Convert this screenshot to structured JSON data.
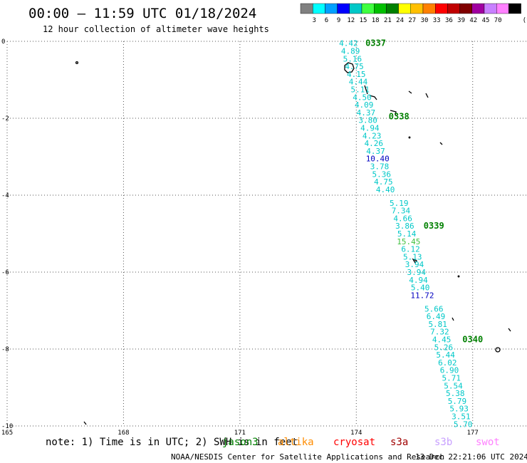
{
  "header": {
    "title": "00:00 – 11:59 UTC 01/18/2024",
    "subtitle": "12 hour collection of altimeter wave heights"
  },
  "legend": {
    "colors": [
      "#808080",
      "#00ffff",
      "#00a0ff",
      "#0000ff",
      "#00c8c8",
      "#40ff40",
      "#00c000",
      "#008000",
      "#ffff00",
      "#ffc000",
      "#ff8000",
      "#ff0000",
      "#c00000",
      "#800000",
      "#a000a0",
      "#c880ff",
      "#ff80ff",
      "#000000"
    ],
    "labels": [
      "3",
      "6",
      "9",
      "12",
      "15",
      "18",
      "21",
      "24",
      "27",
      "30",
      "33",
      "36",
      "39",
      "42",
      "45",
      "70",
      "(ft)"
    ]
  },
  "chart_data": {
    "type": "scatter",
    "x_ticks": [
      "165",
      "168",
      "171",
      "174",
      "177"
    ],
    "y_ticks": [
      "0",
      "-2",
      "-4",
      "-6",
      "-8",
      "-10"
    ],
    "xlim": [
      165,
      178.4
    ],
    "ylim": [
      -10,
      0
    ],
    "grid": true,
    "track_color": "#00ffff",
    "points": [
      {
        "lon": 173.8,
        "lat": -0.05,
        "v": "4.42",
        "c": "#00c8c8"
      },
      {
        "lon": 173.85,
        "lat": -0.25,
        "v": "4.89",
        "c": "#00c8c8"
      },
      {
        "lon": 173.9,
        "lat": -0.45,
        "v": "5.16",
        "c": "#00c8c8"
      },
      {
        "lon": 173.95,
        "lat": -0.65,
        "v": "4.75",
        "c": "#00c8c8"
      },
      {
        "lon": 174.0,
        "lat": -0.85,
        "v": "4.15",
        "c": "#00c8c8"
      },
      {
        "lon": 174.05,
        "lat": -1.05,
        "v": "4.44",
        "c": "#00c8c8"
      },
      {
        "lon": 174.1,
        "lat": -1.25,
        "v": "5.11",
        "c": "#00c8c8"
      },
      {
        "lon": 174.15,
        "lat": -1.45,
        "v": "4.50",
        "c": "#00c8c8"
      },
      {
        "lon": 174.2,
        "lat": -1.65,
        "v": "4.09",
        "c": "#00c8c8"
      },
      {
        "lon": 174.25,
        "lat": -1.85,
        "v": "4.37",
        "c": "#00c8c8"
      },
      {
        "lon": 174.3,
        "lat": -2.05,
        "v": "3.80",
        "c": "#00c8c8"
      },
      {
        "lon": 174.35,
        "lat": -2.25,
        "v": "4.94",
        "c": "#00c8c8"
      },
      {
        "lon": 174.4,
        "lat": -2.45,
        "v": "4.23",
        "c": "#00c8c8"
      },
      {
        "lon": 174.45,
        "lat": -2.65,
        "v": "4.26",
        "c": "#00c8c8"
      },
      {
        "lon": 174.5,
        "lat": -2.85,
        "v": "4.37",
        "c": "#00c8c8"
      },
      {
        "lon": 174.55,
        "lat": -3.05,
        "v": "10.40",
        "c": "#0000c0"
      },
      {
        "lon": 174.6,
        "lat": -3.25,
        "v": "3.78",
        "c": "#00c8c8"
      },
      {
        "lon": 174.65,
        "lat": -3.45,
        "v": "5.36",
        "c": "#00c8c8"
      },
      {
        "lon": 174.7,
        "lat": -3.65,
        "v": "4.75",
        "c": "#00c8c8"
      },
      {
        "lon": 174.75,
        "lat": -3.85,
        "v": "4.40",
        "c": "#00c8c8"
      },
      {
        "lon": 175.1,
        "lat": -4.2,
        "v": "5.19",
        "c": "#00c8c8"
      },
      {
        "lon": 175.15,
        "lat": -4.4,
        "v": "7.34",
        "c": "#00c8c8"
      },
      {
        "lon": 175.2,
        "lat": -4.6,
        "v": "4.66",
        "c": "#00c8c8"
      },
      {
        "lon": 175.25,
        "lat": -4.8,
        "v": "3.86",
        "c": "#00c8c8"
      },
      {
        "lon": 175.3,
        "lat": -5.0,
        "v": "5.14",
        "c": "#00c8c8"
      },
      {
        "lon": 175.35,
        "lat": -5.2,
        "v": "15.45",
        "c": "#40c040"
      },
      {
        "lon": 175.4,
        "lat": -5.4,
        "v": "6.12",
        "c": "#00c8c8"
      },
      {
        "lon": 175.45,
        "lat": -5.6,
        "v": "5.13",
        "c": "#00c8c8"
      },
      {
        "lon": 175.5,
        "lat": -5.8,
        "v": "3.94",
        "c": "#00c8c8"
      },
      {
        "lon": 175.55,
        "lat": -6.0,
        "v": "3.94",
        "c": "#00c8c8"
      },
      {
        "lon": 175.6,
        "lat": -6.2,
        "v": "4.94",
        "c": "#00c8c8"
      },
      {
        "lon": 175.65,
        "lat": -6.4,
        "v": "5.40",
        "c": "#00c8c8"
      },
      {
        "lon": 175.7,
        "lat": -6.6,
        "v": "11.72",
        "c": "#0000c0"
      },
      {
        "lon": 176.0,
        "lat": -6.95,
        "v": "5.66",
        "c": "#00c8c8"
      },
      {
        "lon": 176.05,
        "lat": -7.15,
        "v": "6.49",
        "c": "#00c8c8"
      },
      {
        "lon": 176.1,
        "lat": -7.35,
        "v": "5.81",
        "c": "#00c8c8"
      },
      {
        "lon": 176.15,
        "lat": -7.55,
        "v": "7.32",
        "c": "#00c8c8"
      },
      {
        "lon": 176.2,
        "lat": -7.75,
        "v": "4.45",
        "c": "#00c8c8"
      },
      {
        "lon": 176.25,
        "lat": -7.95,
        "v": "5.26",
        "c": "#00c8c8"
      },
      {
        "lon": 176.3,
        "lat": -8.15,
        "v": "5.44",
        "c": "#00c8c8"
      },
      {
        "lon": 176.35,
        "lat": -8.35,
        "v": "6.02",
        "c": "#00c8c8"
      },
      {
        "lon": 176.4,
        "lat": -8.55,
        "v": "6.90",
        "c": "#00c8c8"
      },
      {
        "lon": 176.45,
        "lat": -8.75,
        "v": "5.71",
        "c": "#00c8c8"
      },
      {
        "lon": 176.5,
        "lat": -8.95,
        "v": "5.54",
        "c": "#00c8c8"
      },
      {
        "lon": 176.55,
        "lat": -9.15,
        "v": "5.38",
        "c": "#00c8c8"
      },
      {
        "lon": 176.6,
        "lat": -9.35,
        "v": "5.79",
        "c": "#00c8c8"
      },
      {
        "lon": 176.65,
        "lat": -9.55,
        "v": "5.93",
        "c": "#00c8c8"
      },
      {
        "lon": 176.7,
        "lat": -9.75,
        "v": "3.51",
        "c": "#00c8c8"
      },
      {
        "lon": 176.75,
        "lat": -9.95,
        "v": "5.70",
        "c": "#00c8c8"
      }
    ],
    "pass_labels": [
      {
        "lon": 174.5,
        "lat": -0.05,
        "v": "0337"
      },
      {
        "lon": 175.1,
        "lat": -1.95,
        "v": "0338"
      },
      {
        "lon": 176.0,
        "lat": -4.8,
        "v": "0339"
      },
      {
        "lon": 177.0,
        "lat": -7.75,
        "v": "0340"
      }
    ]
  },
  "note": {
    "text": "note: 1) Time is in UTC; 2) SWH is in feet",
    "satellites": [
      {
        "name": "jason3",
        "color": "#008000"
      },
      {
        "name": "altika",
        "color": "#ff8c00"
      },
      {
        "name": "cryosat",
        "color": "#ff0000"
      },
      {
        "name": "s3a",
        "color": "#a00000"
      },
      {
        "name": "s3b",
        "color": "#c8a0ff"
      },
      {
        "name": "swot",
        "color": "#ff80ff"
      }
    ]
  },
  "footer": {
    "credit": "NOAA/NESDIS Center for Satellite Applications and Research",
    "timestamp": "13 Dec 22:21:06 UTC 2024"
  }
}
